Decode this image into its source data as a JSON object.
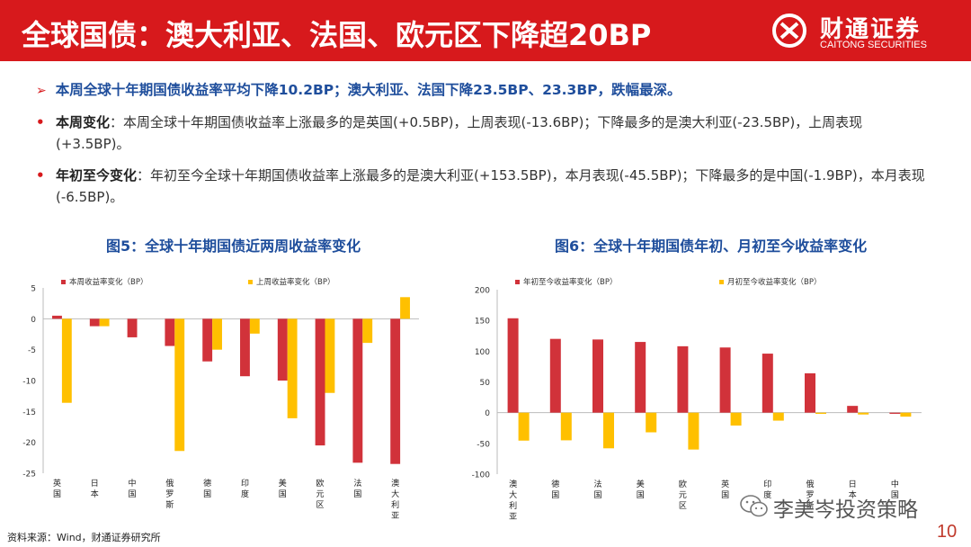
{
  "header": {
    "title": "全球国债：澳大利亚、法国、欧元区下降超20BP",
    "logo_cn": "财通证券",
    "logo_en": "CAITONG SECURITIES",
    "bg_color": "#d7191c"
  },
  "summary": {
    "arrow_icon": "triangle-right-icon",
    "text": "本周全球十年期国债收益率平均下降10.2BP；澳大利亚、法国下降23.5BP、23.3BP，跌幅最深。"
  },
  "bullets": [
    {
      "label": "本周变化",
      "text": "：本周全球十年期国债收益率上涨最多的是英国(+0.5BP)，上周表现(-13.6BP)；下降最多的是澳大利亚(-23.5BP)，上周表现(+3.5BP)。"
    },
    {
      "label": "年初至今变化",
      "text": "：年初至今全球十年期国债收益率上涨最多的是澳大利亚(+153.5BP)，本月表现(-45.5BP)；下降最多的是中国(-1.9BP)，本月表现(-6.5BP)。"
    }
  ],
  "chart_data": [
    {
      "type": "bar",
      "title": "图5：全球十年期国债近两周收益率变化",
      "categories": [
        "英国",
        "日本",
        "中国",
        "俄罗斯",
        "德国",
        "印度",
        "美国",
        "欧元区",
        "法国",
        "澳大利亚"
      ],
      "series": [
        {
          "name": "本周收益率变化（BP）",
          "color": "#d1323a",
          "values": [
            0.5,
            -1.2,
            -3.0,
            -4.4,
            -6.9,
            -9.3,
            -10.0,
            -20.5,
            -23.3,
            -23.5
          ]
        },
        {
          "name": "上周收益率变化（BP）",
          "color": "#ffc000",
          "values": [
            -13.6,
            -1.2,
            0,
            -21.4,
            -5.0,
            -2.4,
            -16.1,
            -12.0,
            -3.9,
            3.5
          ]
        }
      ],
      "yticks": [
        5,
        0,
        -5,
        -10,
        -15,
        -20,
        -25
      ],
      "ylim": [
        -25,
        5
      ],
      "legend": "top"
    },
    {
      "type": "bar",
      "title": "图6：全球十年期国债年初、月初至今收益率变化",
      "categories": [
        "澳大利亚",
        "德国",
        "法国",
        "美国",
        "欧元区",
        "英国",
        "印度",
        "俄罗斯",
        "日本",
        "中国"
      ],
      "series": [
        {
          "name": "年初至今收益率变化（BP）",
          "color": "#d1323a",
          "values": [
            153.5,
            120,
            119,
            115,
            108,
            106,
            96,
            64,
            11,
            -1.9
          ]
        },
        {
          "name": "月初至今收益率变化（BP）",
          "color": "#ffc000",
          "values": [
            -45.5,
            -45,
            -58,
            -32,
            -60,
            -21,
            -13,
            -2,
            -3,
            -6.5
          ]
        }
      ],
      "yticks": [
        200,
        150,
        100,
        50,
        0,
        -50,
        -100
      ],
      "ylim": [
        -100,
        200
      ],
      "legend": "top"
    }
  ],
  "footer": {
    "source": "资料来源：Wind，财通证券研究所",
    "page": "10",
    "watermark": "李美岑投资策略",
    "watermark_icon": "wechat-icon"
  }
}
